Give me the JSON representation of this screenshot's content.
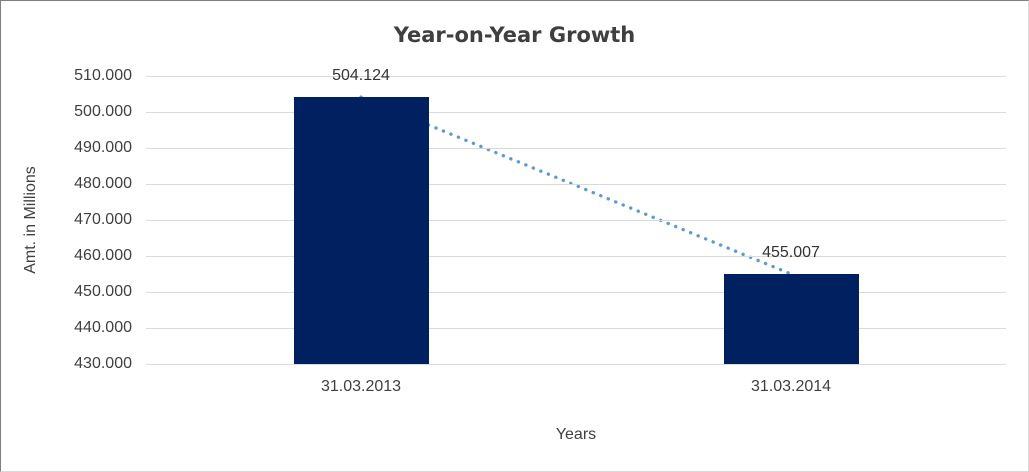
{
  "chart_data": {
    "type": "bar",
    "title": "Year-on-Year Growth",
    "xlabel": "Years",
    "ylabel": "Amt. in Millions",
    "categories": [
      "31.03.2013",
      "31.03.2014"
    ],
    "values": [
      504.124,
      455.007
    ],
    "value_labels": [
      "504.124",
      "455.007"
    ],
    "ylim": [
      430,
      510
    ],
    "yticks": [
      {
        "value": 510,
        "label": "510.000"
      },
      {
        "value": 500,
        "label": "500.000"
      },
      {
        "value": 490,
        "label": "490.000"
      },
      {
        "value": 480,
        "label": "480.000"
      },
      {
        "value": 470,
        "label": "470.000"
      },
      {
        "value": 460,
        "label": "460.000"
      },
      {
        "value": 450,
        "label": "450.000"
      },
      {
        "value": 440,
        "label": "440.000"
      },
      {
        "value": 430,
        "label": "430.000"
      }
    ],
    "grid": true,
    "legend": "none",
    "bar_color": "#002060",
    "gridline_color": "#d9d9d9",
    "trendline": {
      "style": "dotted",
      "color": "#5b9bd5",
      "connects": "tops of the two bars (downward slope)"
    }
  }
}
